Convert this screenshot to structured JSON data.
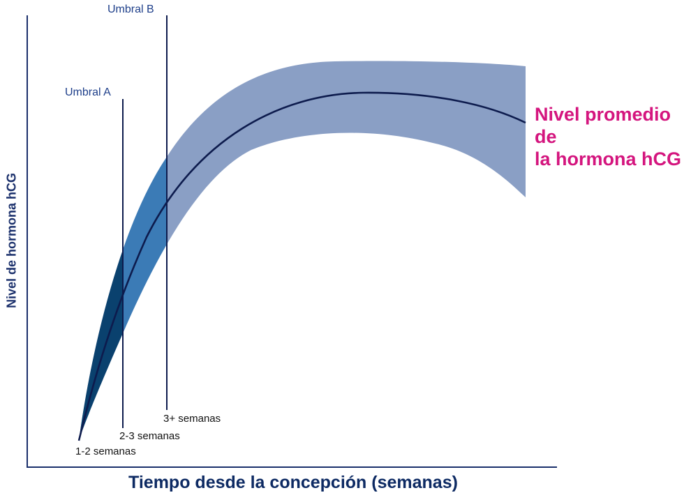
{
  "chart_data": {
    "type": "area",
    "title": "",
    "xlabel": "Tiempo desde la concepción (semanas)",
    "ylabel": "Nivel de hormona hCG",
    "series": [
      {
        "name": "Nivel promedio de la hormona hCG",
        "legend_lines": [
          "Nivel promedio de",
          "la hormona hCG"
        ]
      }
    ],
    "thresholds": [
      {
        "label": "Umbral A",
        "period": "2-3 semanas"
      },
      {
        "label": "Umbral B",
        "period": "3+ semanas"
      }
    ],
    "start_label": "1-2 semanas",
    "grid": false,
    "colors": {
      "band": "#8a9fc5",
      "band_a": "#3b7bb6",
      "band_start": "#0a416e",
      "mean_line": "#0d1b4d",
      "axis": "#1a2f6b",
      "series_label": "#d4157e"
    }
  }
}
